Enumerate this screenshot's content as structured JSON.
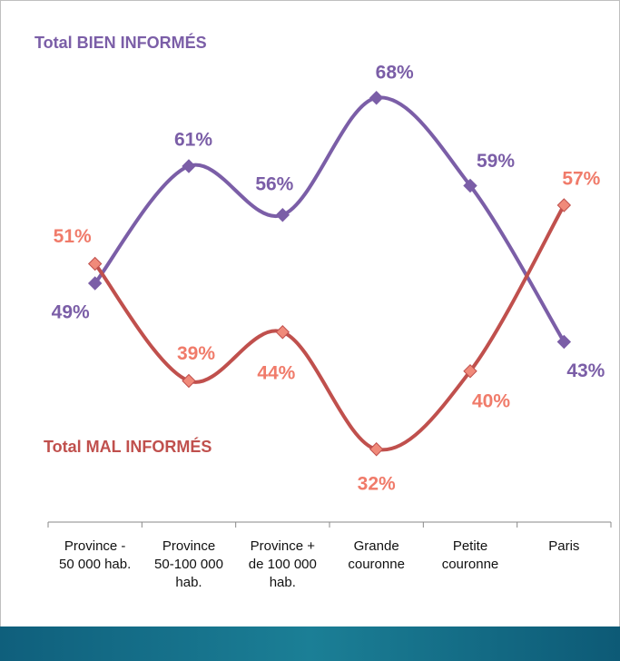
{
  "chart_data": {
    "type": "line",
    "categories": [
      "Province -\n50 000 hab.",
      "Province\n50-100 000\nhab.",
      "Province +\nde 100 000\nhab.",
      "Grande\ncouronne",
      "Petite\ncouronne",
      "Paris"
    ],
    "series": [
      {
        "name": "Total BIEN INFORMÉS",
        "color": "#7b5ea7",
        "values": [
          49,
          61,
          56,
          68,
          59,
          43
        ],
        "value_labels": [
          "49%",
          "61%",
          "56%",
          "68%",
          "59%",
          "43%"
        ]
      },
      {
        "name": "Total MAL INFORMÉS",
        "color": "#c0504d",
        "values": [
          51,
          39,
          44,
          32,
          40,
          57
        ],
        "value_labels": [
          "51%",
          "39%",
          "44%",
          "32%",
          "40%",
          "57%"
        ]
      }
    ],
    "ylim": [
      25,
      75
    ]
  }
}
